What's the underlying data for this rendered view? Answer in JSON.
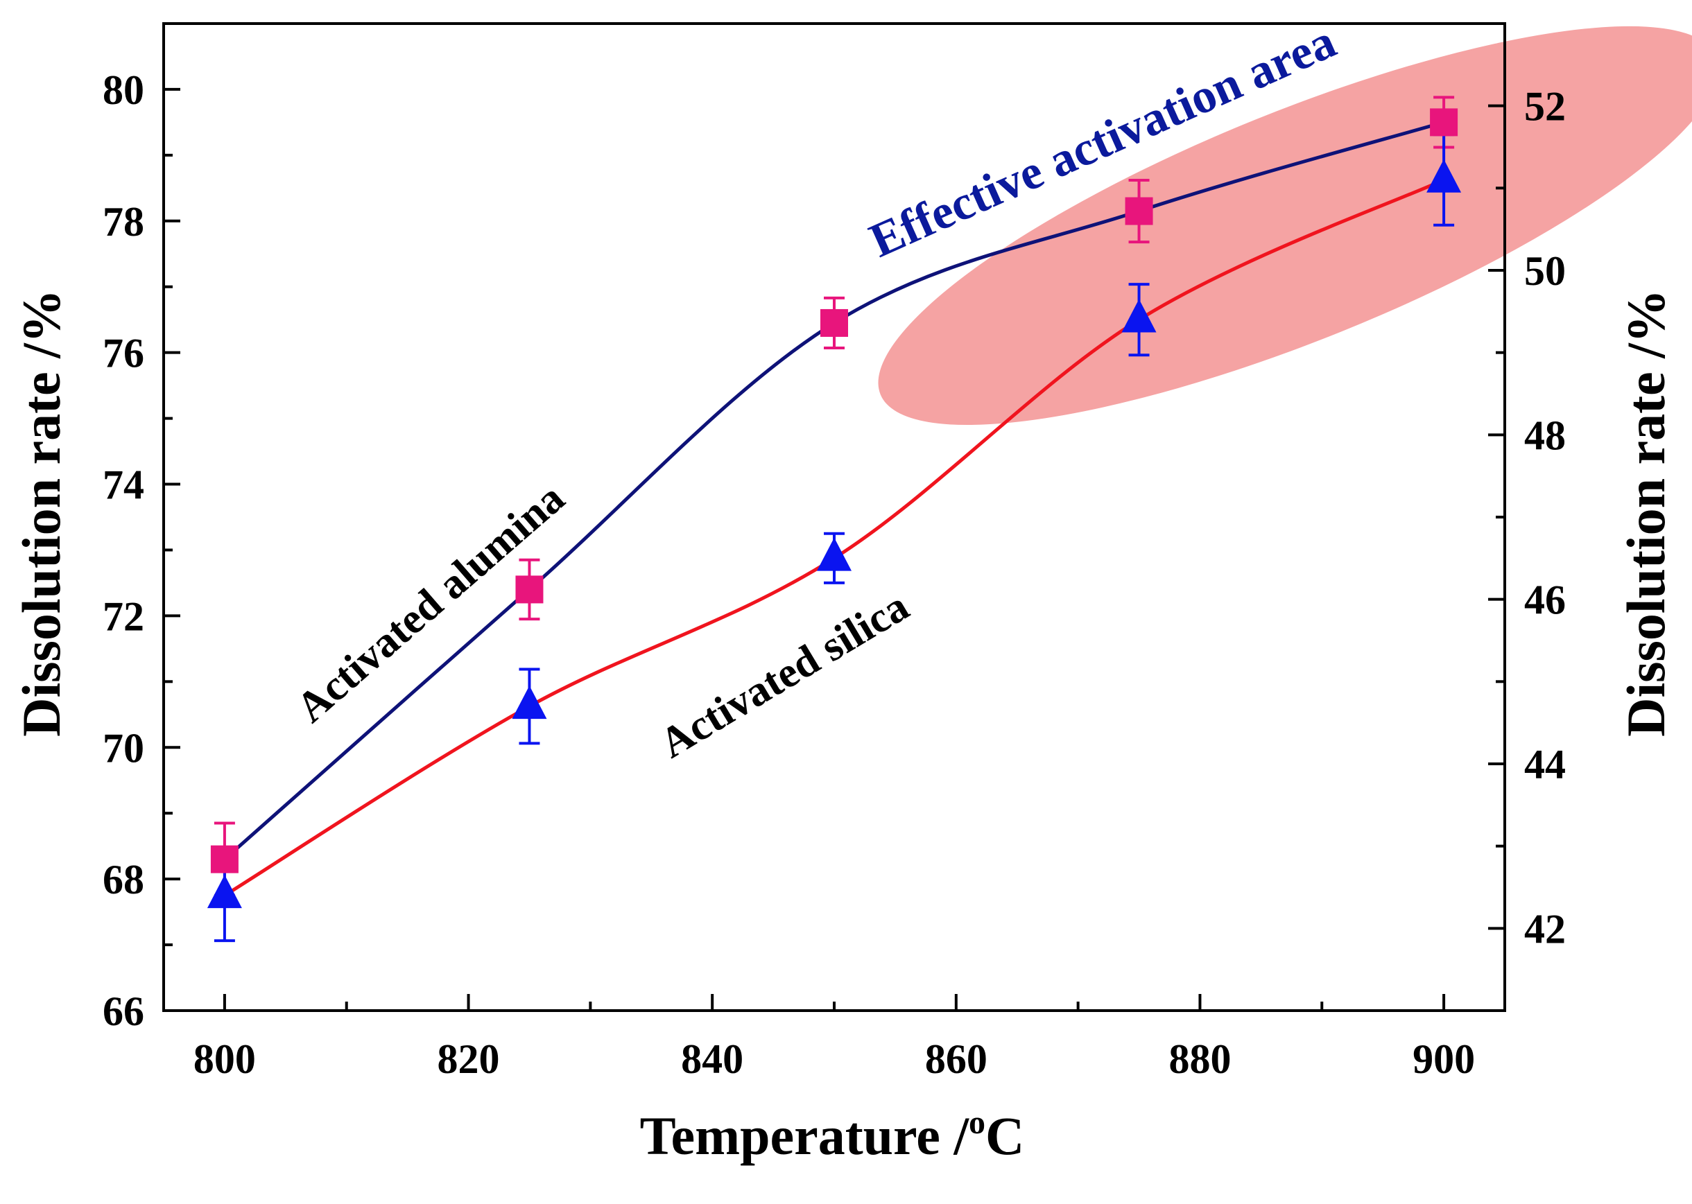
{
  "chart_data": {
    "type": "line",
    "x_axis": {
      "label": "Temperature /",
      "label_sup": "o",
      "label_suffix": "C",
      "range": [
        795,
        905
      ],
      "ticks": [
        800,
        820,
        840,
        860,
        880,
        900
      ],
      "minor_step": 10
    },
    "y_axis_left": {
      "label": "Dissolution rate /%",
      "range": [
        66,
        81
      ],
      "ticks": [
        66,
        68,
        70,
        72,
        74,
        76,
        78,
        80
      ],
      "minor_step": 1
    },
    "y_axis_right": {
      "label": "Dissolution rate /%",
      "range": [
        41,
        53
      ],
      "ticks": [
        42,
        44,
        46,
        48,
        50,
        52
      ],
      "minor_step": 1
    },
    "series": [
      {
        "name": "Activated alumina",
        "axis": "left",
        "marker": "square",
        "marker_color": "#e8157c",
        "line_color": "#0e1278",
        "x": [
          800,
          825,
          850,
          875,
          900
        ],
        "y": [
          68.3,
          72.4,
          76.45,
          78.15,
          79.5
        ],
        "err": [
          0.55,
          0.45,
          0.38,
          0.47,
          0.38
        ]
      },
      {
        "name": "Activated silica",
        "axis": "right",
        "marker": "triangle",
        "marker_color": "#0a14f0",
        "line_color": "#f0141e",
        "x": [
          800,
          825,
          850,
          875,
          900
        ],
        "y": [
          42.4,
          44.7,
          46.5,
          49.4,
          51.1
        ],
        "err": [
          0.55,
          0.45,
          0.3,
          0.43,
          0.55
        ]
      }
    ],
    "annotations": [
      {
        "text": "Activated alumina",
        "color": "#000000"
      },
      {
        "text": "Activated silica",
        "color": "#000000"
      },
      {
        "text": "Effective activation area",
        "color": "#0b1a9c"
      }
    ],
    "highlight_region_color": "#f5a3a3",
    "grid": false,
    "legend": "none"
  }
}
